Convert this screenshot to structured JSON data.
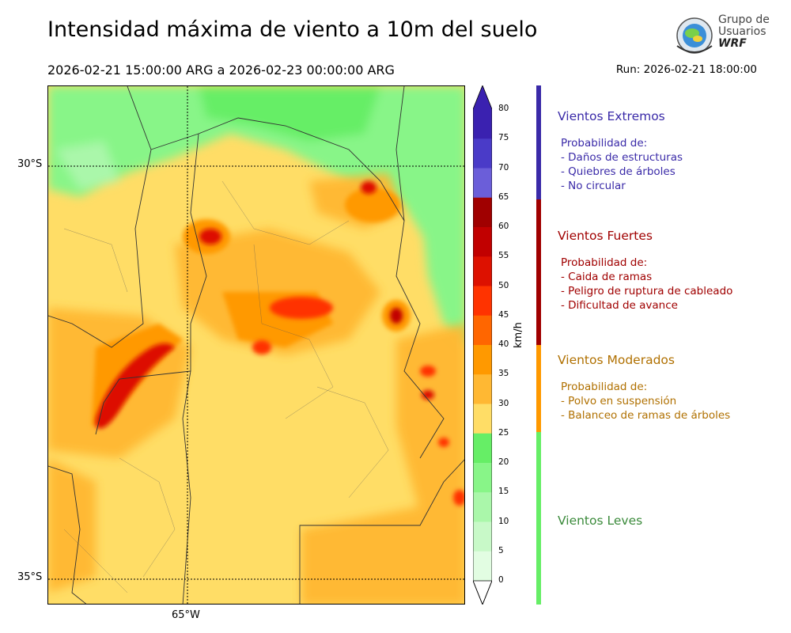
{
  "header": {
    "title": "Intensidad máxima de viento a 10m del suelo",
    "subtitle": "2026-02-21 15:00:00 ARG  a  2026-02-23 00:00:00 ARG",
    "run": "Run: 2026-02-21 18:00:00"
  },
  "logo": {
    "line1": "Grupo de",
    "line2": "Usuarios",
    "line3": "WRF"
  },
  "map": {
    "lat_labels": [
      "30°S",
      "35°S"
    ],
    "lon_labels": [
      "65°W"
    ]
  },
  "colorbar": {
    "unit": "km/h",
    "ticks": [
      "80",
      "75",
      "70",
      "65",
      "60",
      "55",
      "50",
      "45",
      "40",
      "35",
      "30",
      "25",
      "20",
      "15",
      "10",
      "5",
      "0"
    ],
    "colors": [
      "#3a21b0",
      "#4a3bc8",
      "#6b5ed9",
      "#a00000",
      "#c10000",
      "#dd1100",
      "#ff3300",
      "#ff6600",
      "#ff9900",
      "#ffb833",
      "#ffdd66",
      "#66ee66",
      "#88f588",
      "#aaf7aa",
      "#c8f9c8",
      "#e2fde2"
    ]
  },
  "categories": [
    {
      "title": "Vientos Extremos",
      "color": "#3a2aa8",
      "lines": [
        "Probabilidad de:",
        "- Daños de estructuras",
        "- Quiebres de árboles",
        "- No circular"
      ]
    },
    {
      "title": "Vientos Fuertes",
      "color": "#a00000",
      "lines": [
        "Probabilidad de:",
        "- Caida de ramas",
        "- Peligro de ruptura de cableado",
        "- Dificultad de avance"
      ]
    },
    {
      "title": "Vientos Moderados",
      "color": "#b07000",
      "lines": [
        "Probabilidad de:",
        "- Polvo en suspensión",
        "- Balanceo de ramas de árboles"
      ]
    },
    {
      "title": "Vientos Leves",
      "color": "#3a8a3a",
      "lines": []
    }
  ]
}
